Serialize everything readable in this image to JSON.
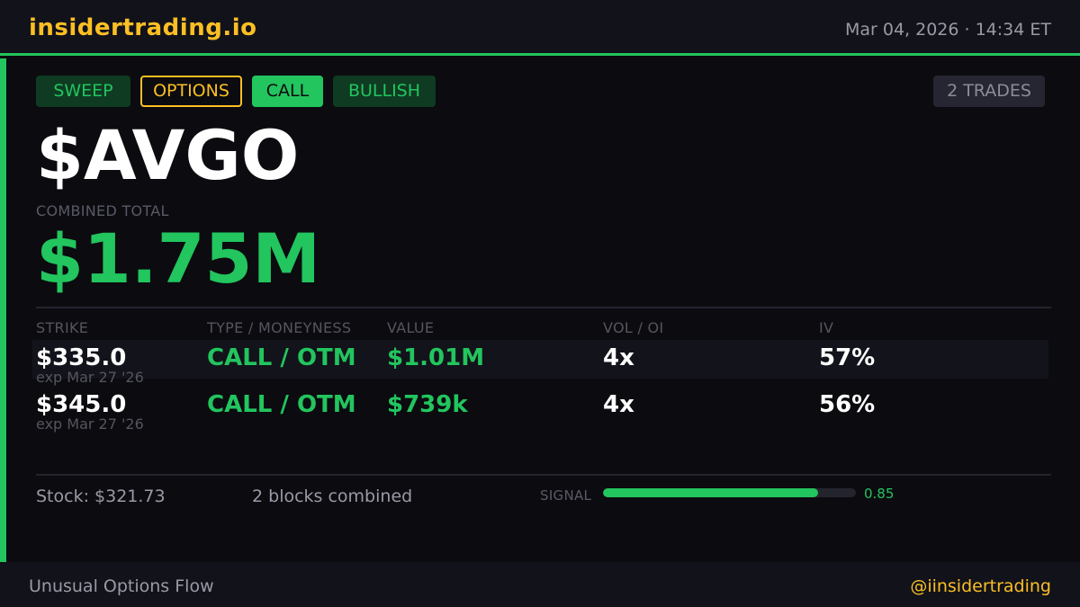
{
  "header": {
    "brand": "insidertrading.io",
    "datetime": "Mar 04, 2026  ·  14:34 ET"
  },
  "tags": [
    "SWEEP",
    "OPTIONS",
    "CALL",
    "BULLISH"
  ],
  "trades_badge": "2 TRADES",
  "ticker": "$AVGO",
  "combined_total": {
    "label": "COMBINED TOTAL",
    "value": "$1.75M"
  },
  "table": {
    "headers": [
      "STRIKE",
      "TYPE / MONEYNESS",
      "VALUE",
      "VOL / OI",
      "IV"
    ],
    "rows": [
      {
        "strike": "$335.0",
        "exp": "exp Mar 27 '26",
        "type": "CALL / OTM",
        "value": "$1.01M",
        "vol_oi": "4x",
        "iv": "57%"
      },
      {
        "strike": "$345.0",
        "exp": "exp Mar 27 '26",
        "type": "CALL / OTM",
        "value": "$739k",
        "vol_oi": "4x",
        "iv": "56%"
      }
    ]
  },
  "summary": {
    "stock": "Stock: $321.73",
    "blocks": "2 blocks combined",
    "signal_label": "SIGNAL",
    "signal_text": "0.85",
    "signal_level": 0.85
  },
  "footer": {
    "left": "Unusual Options Flow",
    "right": "@iinsidertrading"
  },
  "colors": {
    "accent_green": "#22c55e",
    "accent_gold": "#fbbf24",
    "background": "#0b0b10"
  }
}
